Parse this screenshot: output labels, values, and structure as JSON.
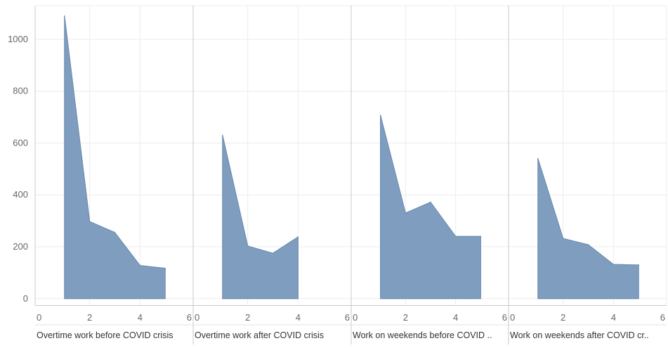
{
  "chart_data": {
    "type": "area",
    "y_axis": {
      "ylim": [
        -25,
        1130
      ],
      "ticks": [
        0,
        200,
        400,
        600,
        800,
        1000
      ]
    },
    "x_axis": {
      "xlim": [
        0,
        6
      ],
      "ticks": [
        0,
        2,
        4,
        6
      ]
    },
    "grid": true,
    "colors": {
      "fill": "#7f9ebf",
      "stroke": "#6d8db3",
      "grid": "#ececec",
      "divider": "#c8c8c8"
    },
    "panels": [
      {
        "title": "Overtime work before COVID crisis",
        "x": [
          1,
          2,
          3,
          4,
          5
        ],
        "values": [
          1090,
          297,
          255,
          128,
          117
        ]
      },
      {
        "title": "Overtime work after COVID crisis",
        "x": [
          1,
          2,
          3,
          4
        ],
        "values": [
          630,
          203,
          175,
          238
        ]
      },
      {
        "title": "Work on weekends before COVID ..",
        "x": [
          1,
          2,
          3,
          4,
          5
        ],
        "values": [
          707,
          330,
          372,
          240,
          240
        ]
      },
      {
        "title": "Work on weekends after COVID cr..",
        "x": [
          1,
          2,
          3,
          4,
          5
        ],
        "values": [
          540,
          232,
          208,
          132,
          130
        ]
      }
    ]
  }
}
